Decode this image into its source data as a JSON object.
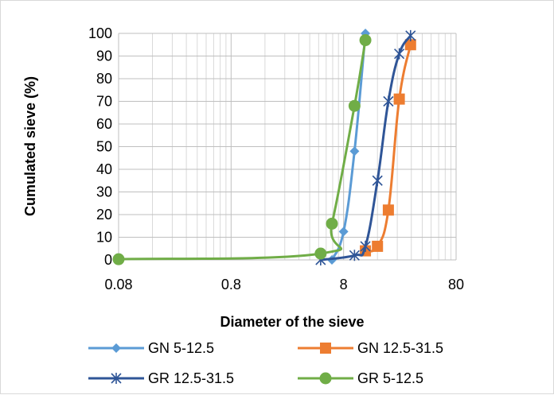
{
  "chart_data": {
    "type": "line",
    "x_scale": "log",
    "xlabel": "Diameter of the sieve",
    "ylabel": "Cumulated sieve (%)",
    "xlim": [
      0.08,
      80
    ],
    "ylim": [
      0,
      100
    ],
    "x_ticks": [
      0.08,
      0.8,
      8,
      80
    ],
    "x_tick_labels": [
      "0.08",
      "0.8",
      "8",
      "80"
    ],
    "y_ticks": [
      0,
      10,
      20,
      30,
      40,
      50,
      60,
      70,
      80,
      90,
      100
    ],
    "y_tick_labels": [
      "0",
      "10",
      "20",
      "30",
      "40",
      "50",
      "60",
      "70",
      "80",
      "90",
      "100"
    ],
    "grid": true,
    "legend_position": "bottom",
    "series": [
      {
        "name": "GN 5-12.5",
        "color": "#5b9bd5",
        "marker": "diamond",
        "points": [
          [
            6.3,
            0
          ],
          [
            8,
            12.5
          ],
          [
            10,
            48
          ],
          [
            12.5,
            100
          ]
        ]
      },
      {
        "name": "GN 12.5-31.5",
        "color": "#ed7d31",
        "marker": "square",
        "points": [
          [
            12.5,
            4
          ],
          [
            16,
            6
          ],
          [
            20,
            22
          ],
          [
            25,
            71
          ],
          [
            31.5,
            95
          ]
        ]
      },
      {
        "name": "GR 12.5-31.5",
        "color": "#2f5597",
        "marker": "star",
        "points": [
          [
            5,
            0
          ],
          [
            10,
            2
          ],
          [
            12.5,
            6
          ],
          [
            16,
            35
          ],
          [
            20,
            70
          ],
          [
            25,
            91
          ],
          [
            31.5,
            99
          ]
        ]
      },
      {
        "name": "GR 5-12.5",
        "color": "#70ad47",
        "marker": "circle",
        "points": [
          [
            0.08,
            0.3
          ],
          [
            5,
            2.8
          ],
          [
            6.3,
            16
          ],
          [
            10,
            68
          ],
          [
            12.5,
            97
          ]
        ]
      }
    ]
  }
}
